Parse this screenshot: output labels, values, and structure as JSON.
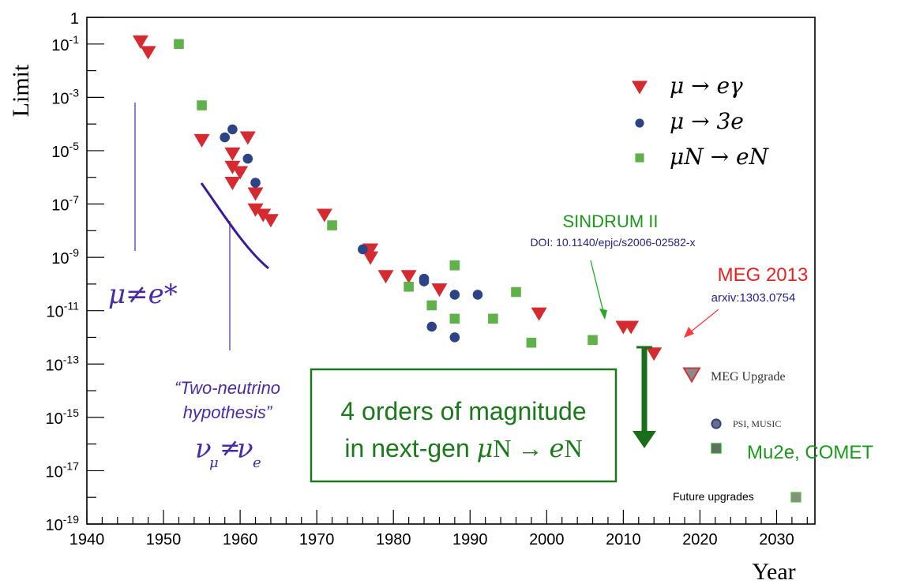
{
  "chart_data": {
    "type": "scatter",
    "xlabel": "Year",
    "ylabel": "Limit",
    "xlim": [
      1940,
      2035
    ],
    "ylim_log10": [
      -19,
      0
    ],
    "y_scale": "log",
    "x_ticks": [
      "1940",
      "1950",
      "1960",
      "1970",
      "1980",
      "1990",
      "2000",
      "2010",
      "2020",
      "2030"
    ],
    "y_ticks": [
      {
        "base": "1",
        "exp": ""
      },
      {
        "base": "10",
        "exp": "-1"
      },
      {
        "base": "10",
        "exp": "-3"
      },
      {
        "base": "10",
        "exp": "-5"
      },
      {
        "base": "10",
        "exp": "-7"
      },
      {
        "base": "10",
        "exp": "-9"
      },
      {
        "base": "10",
        "exp": "-11"
      },
      {
        "base": "10",
        "exp": "-13"
      },
      {
        "base": "10",
        "exp": "-15"
      },
      {
        "base": "10",
        "exp": "-17"
      },
      {
        "base": "10",
        "exp": "-19"
      }
    ],
    "legend_position": "top-right",
    "series": [
      {
        "name": "μ → eγ",
        "marker": "triangle-down",
        "color": "#d42a30",
        "points": [
          [
            1947,
            -0.9
          ],
          [
            1948,
            -1.3
          ],
          [
            1955,
            -4.6
          ],
          [
            1959,
            -5.1
          ],
          [
            1959,
            -5.6
          ],
          [
            1960,
            -5.8
          ],
          [
            1959,
            -6.2
          ],
          [
            1961,
            -4.5
          ],
          [
            1962,
            -6.6
          ],
          [
            1962,
            -7.2
          ],
          [
            1963,
            -7.4
          ],
          [
            1964,
            -7.6
          ],
          [
            1971,
            -7.4
          ],
          [
            1977,
            -8.7
          ],
          [
            1977,
            -9.0
          ],
          [
            1979,
            -9.7
          ],
          [
            1982,
            -9.7
          ],
          [
            1986,
            -10.2
          ],
          [
            1999,
            -11.1
          ],
          [
            2010,
            -11.6
          ],
          [
            2011,
            -11.6
          ],
          [
            2014,
            -12.6
          ]
        ]
      },
      {
        "name": "μ → 3e",
        "marker": "circle",
        "color": "#2c4486",
        "points": [
          [
            1958,
            -4.5
          ],
          [
            1959,
            -4.2
          ],
          [
            1961,
            -5.3
          ],
          [
            1962,
            -6.2
          ],
          [
            1976,
            -8.7
          ],
          [
            1984,
            -9.8
          ],
          [
            1984,
            -9.9
          ],
          [
            1988,
            -10.4
          ],
          [
            1991,
            -10.4
          ],
          [
            1985,
            -11.6
          ],
          [
            1988,
            -12.0
          ]
        ]
      },
      {
        "name": "μN → eN",
        "marker": "square",
        "color": "#5fb24a",
        "points": [
          [
            1952,
            -1.0
          ],
          [
            1955,
            -3.3
          ],
          [
            1972,
            -7.8
          ],
          [
            1982,
            -10.1
          ],
          [
            1988,
            -9.3
          ],
          [
            1985,
            -10.8
          ],
          [
            1988,
            -11.3
          ],
          [
            1993,
            -11.3
          ],
          [
            1996,
            -10.3
          ],
          [
            1998,
            -12.2
          ],
          [
            2006,
            -12.1
          ]
        ]
      }
    ],
    "upgrades": [
      {
        "name": "MEG Upgrade",
        "marker": "triangle-down",
        "color": "#8a8a8a",
        "edge": "#c83a3a"
      },
      {
        "name": "PSI, MUSIC",
        "marker": "circle",
        "color": "#6a6f88",
        "edge": "#2c4486"
      },
      {
        "name": "Mu2e, COMET",
        "marker": "square",
        "color": "#6a6a6a",
        "edge": "#2e9a2e"
      },
      {
        "name": "Future upgrades",
        "marker": "square",
        "color": "#8a8a8a",
        "edge": "#5fb24a"
      }
    ],
    "annotations": {
      "mu_ne_e": "μ≠e*",
      "two_neutrino_1": "“Two-neutrino",
      "two_neutrino_2": "hypothesis”",
      "nu_main": "ν",
      "nu_sub_mu": "μ",
      "nu_neq": "≠",
      "nu_sub_e": "e",
      "sindrum": "SINDRUM II",
      "sindrum_doi": "DOI: 10.1140/epjc/s2006-02582-x",
      "meg": "MEG 2013",
      "meg_arxiv": "arxiv:1303.0754",
      "box_line1": "4 orders of magnitude",
      "box_line2_prefix": "in next-gen ",
      "box_line2_mu": "μ",
      "box_line2_N1": "N → ",
      "box_line2_e": "e",
      "box_line2_N2": "N"
    },
    "colors": {
      "indigo": "#4a2aa8",
      "green_text": "#1a9a1a",
      "dark_green": "#1a6e1a",
      "red_text": "#e62222",
      "navy": "#222288"
    }
  }
}
